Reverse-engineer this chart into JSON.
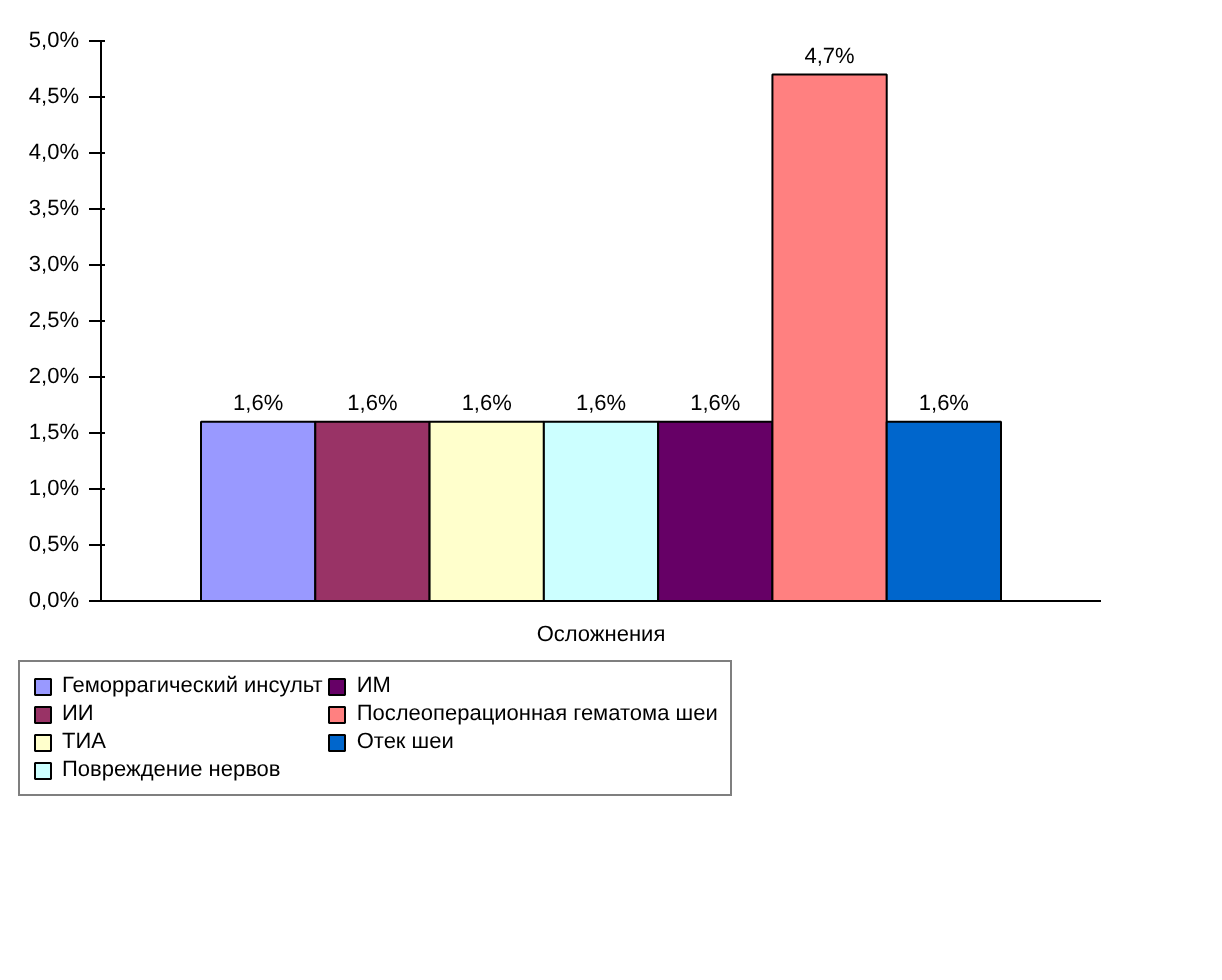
{
  "chart_data": {
    "type": "bar",
    "categories": [
      "Осложнения"
    ],
    "series": [
      {
        "name": "Геморрагический инсульт",
        "color": "#9999ff",
        "values": [
          1.6
        ],
        "value_labels": [
          "1,6%"
        ]
      },
      {
        "name": "ИИ",
        "color": "#993366",
        "values": [
          1.6
        ],
        "value_labels": [
          "1,6%"
        ]
      },
      {
        "name": "ТИА",
        "color": "#ffffcc",
        "values": [
          1.6
        ],
        "value_labels": [
          "1,6%"
        ]
      },
      {
        "name": "Повреждение нервов",
        "color": "#ccffff",
        "values": [
          1.6
        ],
        "value_labels": [
          "1,6%"
        ]
      },
      {
        "name": "ИМ",
        "color": "#660066",
        "values": [
          1.6
        ],
        "value_labels": [
          "1,6%"
        ]
      },
      {
        "name": "Послеоперационная гематома шеи",
        "color": "#ff8080",
        "values": [
          4.7
        ],
        "value_labels": [
          "4,7%"
        ]
      },
      {
        "name": "Отек шеи",
        "color": "#0066cc",
        "values": [
          1.6
        ],
        "value_labels": [
          "1,6%"
        ]
      }
    ],
    "ylim": [
      0,
      5
    ],
    "yticks": [
      {
        "value": 0,
        "label": "0,0%"
      },
      {
        "value": 0.5,
        "label": "0,5%"
      },
      {
        "value": 1,
        "label": "1,0%"
      },
      {
        "value": 1.5,
        "label": "1,5%"
      },
      {
        "value": 2,
        "label": "2,0%"
      },
      {
        "value": 2.5,
        "label": "2,5%"
      },
      {
        "value": 3,
        "label": "3,0%"
      },
      {
        "value": 3.5,
        "label": "3,5%"
      },
      {
        "value": 4,
        "label": "4,0%"
      },
      {
        "value": 4.5,
        "label": "4,5%"
      },
      {
        "value": 5,
        "label": "5,0%"
      }
    ],
    "grid": false,
    "legend": "bottom"
  }
}
